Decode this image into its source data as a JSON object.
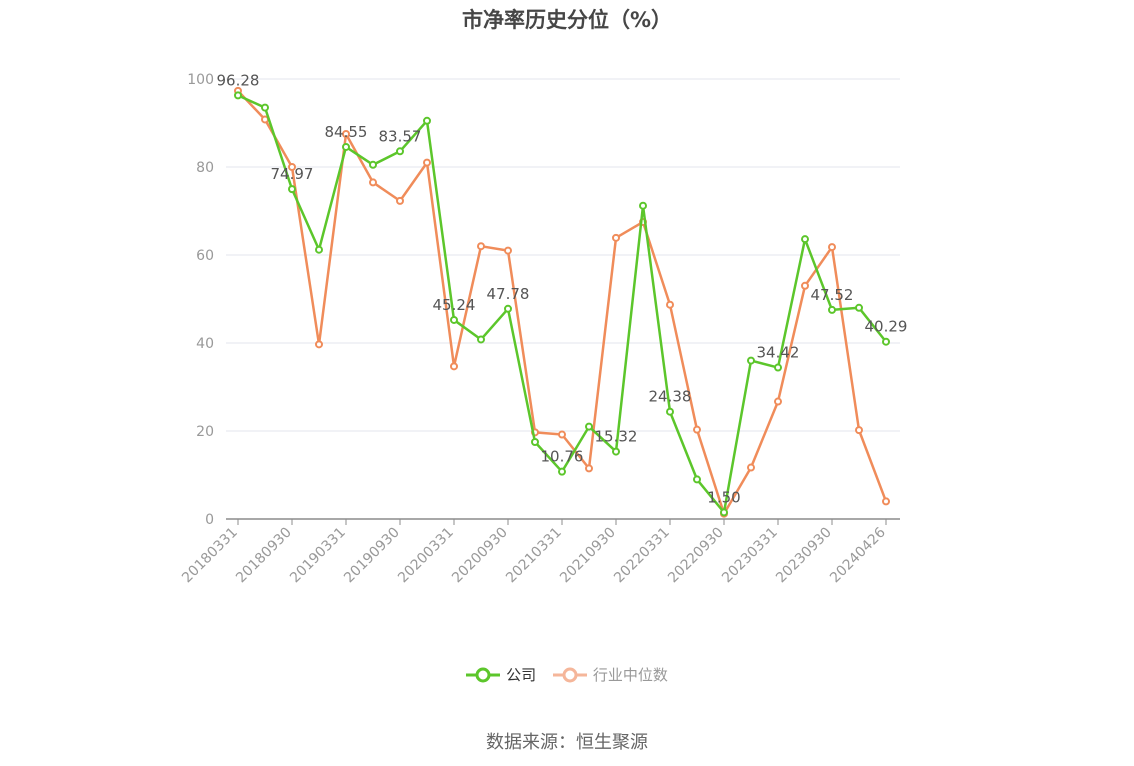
{
  "chart_data": {
    "type": "line",
    "title": "市净率历史分位（%）",
    "x": [
      "20180331",
      "20180630",
      "20180930",
      "20181231",
      "20190331",
      "20190630",
      "20190930",
      "20191231",
      "20200331",
      "20200630",
      "20200930",
      "20201231",
      "20210331",
      "20210630",
      "20210930",
      "20211231",
      "20220331",
      "20220630",
      "20220930",
      "20221231",
      "20230331",
      "20230630",
      "20230930",
      "20231231",
      "20240426"
    ],
    "x_tick_labels": [
      "20180331",
      "20180930",
      "20190331",
      "20190930",
      "20200331",
      "20200930",
      "20210331",
      "20210930",
      "20220331",
      "20220930",
      "20230331",
      "20230930",
      "20240426"
    ],
    "y_ticks": [
      "0",
      "20",
      "40",
      "60",
      "80",
      "100"
    ],
    "ylim": [
      0,
      100
    ],
    "grid": true,
    "legend_position": "bottom",
    "series": [
      {
        "name": "公司",
        "color": "#5cc62b",
        "values": [
          96.28,
          93.5,
          74.97,
          61.2,
          84.55,
          80.5,
          83.57,
          90.5,
          45.24,
          40.8,
          47.78,
          17.5,
          10.76,
          21.0,
          15.32,
          71.2,
          24.38,
          9.0,
          1.5,
          36.0,
          34.42,
          63.6,
          47.52,
          48.0,
          40.29
        ],
        "labels": [
          "96.28",
          null,
          "74.97",
          null,
          "84.55",
          null,
          "83.57",
          null,
          "45.24",
          null,
          "47.78",
          null,
          "10.76",
          null,
          "15.32",
          null,
          "24.38",
          null,
          "1.50",
          null,
          "34.42",
          null,
          "47.52",
          null,
          "40.29"
        ]
      },
      {
        "name": "行业中位数",
        "color": "#f08c5a",
        "values": [
          97.3,
          90.8,
          80.0,
          39.7,
          87.5,
          76.5,
          72.3,
          81.0,
          34.7,
          62.0,
          61.0,
          19.7,
          19.2,
          11.5,
          63.9,
          67.5,
          48.7,
          20.3,
          1.2,
          11.7,
          26.7,
          53.0,
          61.8,
          20.2,
          4.0
        ]
      }
    ]
  },
  "source_text": "数据来源：恒生聚源"
}
